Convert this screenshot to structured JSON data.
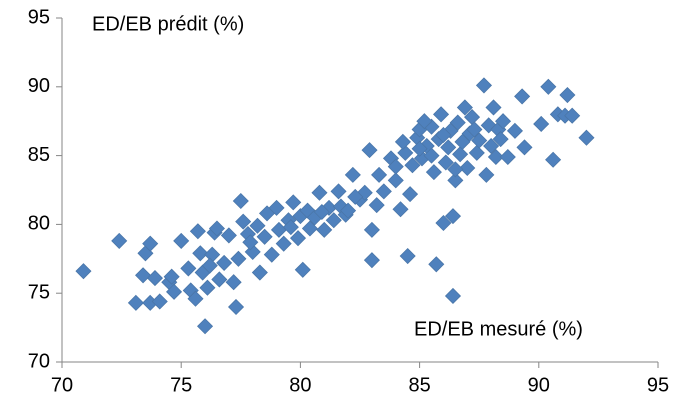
{
  "chart_data": {
    "type": "scatter",
    "ylabel": "ED/EB prédit (%)",
    "xlabel": "ED/EB mesuré (%)",
    "color": "#4f81bd",
    "x": [
      70.9,
      72.4,
      73.1,
      73.4,
      73.5,
      73.7,
      73.7,
      73.9,
      74.1,
      74.5,
      74.6,
      74.7,
      75.0,
      75.3,
      75.4,
      75.6,
      75.7,
      75.8,
      75.9,
      76.0,
      76.1,
      76.3,
      76.4,
      76.5,
      76.6,
      76.8,
      77.0,
      77.2,
      77.3,
      77.4,
      77.5,
      77.6,
      77.8,
      78.0,
      78.2,
      78.3,
      78.5,
      78.6,
      78.8,
      79.0,
      79.1,
      79.3,
      79.5,
      79.7,
      79.9,
      80.0,
      80.1,
      80.3,
      80.4,
      80.6,
      80.8,
      81.0,
      81.2,
      81.4,
      81.6,
      81.7,
      81.9,
      82.0,
      82.2,
      82.5,
      82.7,
      82.9,
      83.0,
      83.0,
      83.2,
      83.3,
      83.5,
      83.8,
      84.0,
      84.2,
      84.4,
      84.5,
      84.6,
      84.7,
      84.9,
      85.0,
      85.1,
      85.3,
      85.5,
      85.6,
      85.7,
      85.8,
      85.9,
      86.0,
      86.1,
      86.2,
      86.3,
      86.4,
      86.4,
      86.5,
      86.6,
      86.7,
      86.9,
      87.0,
      87.1,
      87.2,
      87.4,
      87.5,
      87.7,
      87.8,
      87.9,
      88.0,
      88.1,
      88.2,
      88.3,
      88.5,
      88.7,
      89.0,
      89.3,
      89.4,
      90.1,
      90.4,
      90.6,
      90.8,
      91.1,
      91.2,
      91.4,
      92.0,
      84.0,
      85.0,
      85.5,
      86.0,
      86.8,
      87.3,
      88.4,
      84.3,
      85.2,
      86.5,
      76.2,
      77.9,
      79.6,
      80.9,
      82.3
    ],
    "values": [
      76.6,
      78.8,
      74.3,
      76.3,
      77.9,
      78.6,
      74.3,
      76.1,
      74.4,
      75.8,
      76.2,
      75.1,
      78.8,
      76.8,
      75.2,
      74.6,
      79.5,
      77.9,
      76.5,
      72.6,
      75.4,
      77.8,
      79.4,
      79.7,
      76.0,
      77.2,
      79.2,
      75.8,
      74.0,
      77.5,
      81.7,
      80.2,
      79.3,
      78.0,
      79.9,
      76.5,
      79.1,
      80.8,
      77.8,
      81.2,
      79.6,
      78.6,
      80.3,
      81.6,
      79.0,
      80.6,
      76.7,
      81.0,
      79.7,
      80.5,
      82.3,
      79.6,
      81.2,
      80.3,
      82.4,
      81.3,
      80.7,
      81.0,
      83.6,
      81.8,
      82.3,
      85.4,
      79.6,
      77.4,
      81.4,
      83.6,
      82.4,
      84.8,
      83.2,
      81.1,
      85.2,
      77.7,
      82.2,
      84.3,
      86.3,
      86.9,
      84.8,
      85.7,
      87.1,
      83.8,
      77.1,
      86.2,
      88.0,
      80.1,
      84.5,
      85.6,
      86.8,
      74.8,
      80.6,
      83.2,
      87.4,
      85.1,
      88.5,
      84.1,
      86.6,
      87.8,
      85.2,
      86.1,
      90.1,
      83.6,
      87.2,
      85.7,
      88.5,
      84.9,
      86.9,
      87.5,
      84.9,
      86.8,
      89.3,
      85.6,
      87.3,
      90.0,
      84.7,
      88.0,
      87.9,
      89.4,
      87.9,
      86.3,
      84.2,
      85.5,
      85.0,
      86.5,
      86.0,
      86.9,
      86.2,
      86.0,
      87.5,
      84.0,
      77.0,
      78.7,
      79.8,
      80.9,
      82.0
    ],
    "xlim": [
      70,
      95
    ],
    "xticks": [
      70,
      75,
      80,
      85,
      90,
      95
    ],
    "ylim": [
      70,
      95
    ],
    "yticks": [
      70,
      75,
      80,
      85,
      90,
      95
    ]
  }
}
